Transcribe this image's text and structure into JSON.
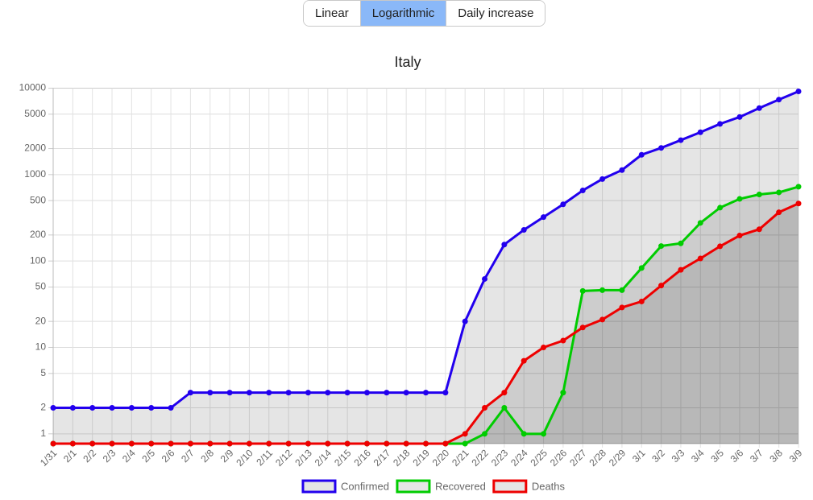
{
  "controls": {
    "buttons": [
      "Linear",
      "Logarithmic",
      "Daily increase"
    ],
    "active": 1
  },
  "chart_data": {
    "type": "line",
    "title": "Italy",
    "log_scale": true,
    "grid": true,
    "legend": "bottom",
    "categories": [
      "1/31",
      "2/1",
      "2/2",
      "2/3",
      "2/4",
      "2/5",
      "2/6",
      "2/7",
      "2/8",
      "2/9",
      "2/10",
      "2/11",
      "2/12",
      "2/13",
      "2/14",
      "2/15",
      "2/16",
      "2/17",
      "2/18",
      "2/19",
      "2/20",
      "2/21",
      "2/22",
      "2/23",
      "2/24",
      "2/25",
      "2/26",
      "2/27",
      "2/28",
      "2/29",
      "3/1",
      "3/2",
      "3/3",
      "3/4",
      "3/5",
      "3/6",
      "3/7",
      "3/8",
      "3/9"
    ],
    "series": [
      {
        "name": "Confirmed",
        "color": "#2200ee",
        "values": [
          2,
          2,
          2,
          2,
          2,
          2,
          2,
          3,
          3,
          3,
          3,
          3,
          3,
          3,
          3,
          3,
          3,
          3,
          3,
          3,
          3,
          20,
          62,
          155,
          229,
          322,
          453,
          655,
          888,
          1128,
          1694,
          2036,
          2502,
          3089,
          3858,
          4636,
          5883,
          7375,
          9172
        ]
      },
      {
        "name": "Recovered",
        "color": "#00cc00",
        "values": [
          0,
          0,
          0,
          0,
          0,
          0,
          0,
          0,
          0,
          0,
          0,
          0,
          0,
          0,
          0,
          0,
          0,
          0,
          0,
          0,
          0,
          0,
          1,
          2,
          1,
          1,
          3,
          45,
          46,
          46,
          83,
          149,
          160,
          276,
          414,
          523,
          589,
          622,
          724
        ]
      },
      {
        "name": "Deaths",
        "color": "#ee0000",
        "values": [
          0,
          0,
          0,
          0,
          0,
          0,
          0,
          0,
          0,
          0,
          0,
          0,
          0,
          0,
          0,
          0,
          0,
          0,
          0,
          0,
          0,
          1,
          2,
          3,
          7,
          10,
          12,
          17,
          21,
          29,
          34,
          52,
          79,
          107,
          148,
          197,
          233,
          366,
          463
        ]
      }
    ],
    "ylim": [
      0.77,
      10000
    ],
    "yticks": [
      1,
      2,
      5,
      10,
      20,
      50,
      100,
      200,
      500,
      1000,
      2000,
      5000,
      10000
    ]
  }
}
